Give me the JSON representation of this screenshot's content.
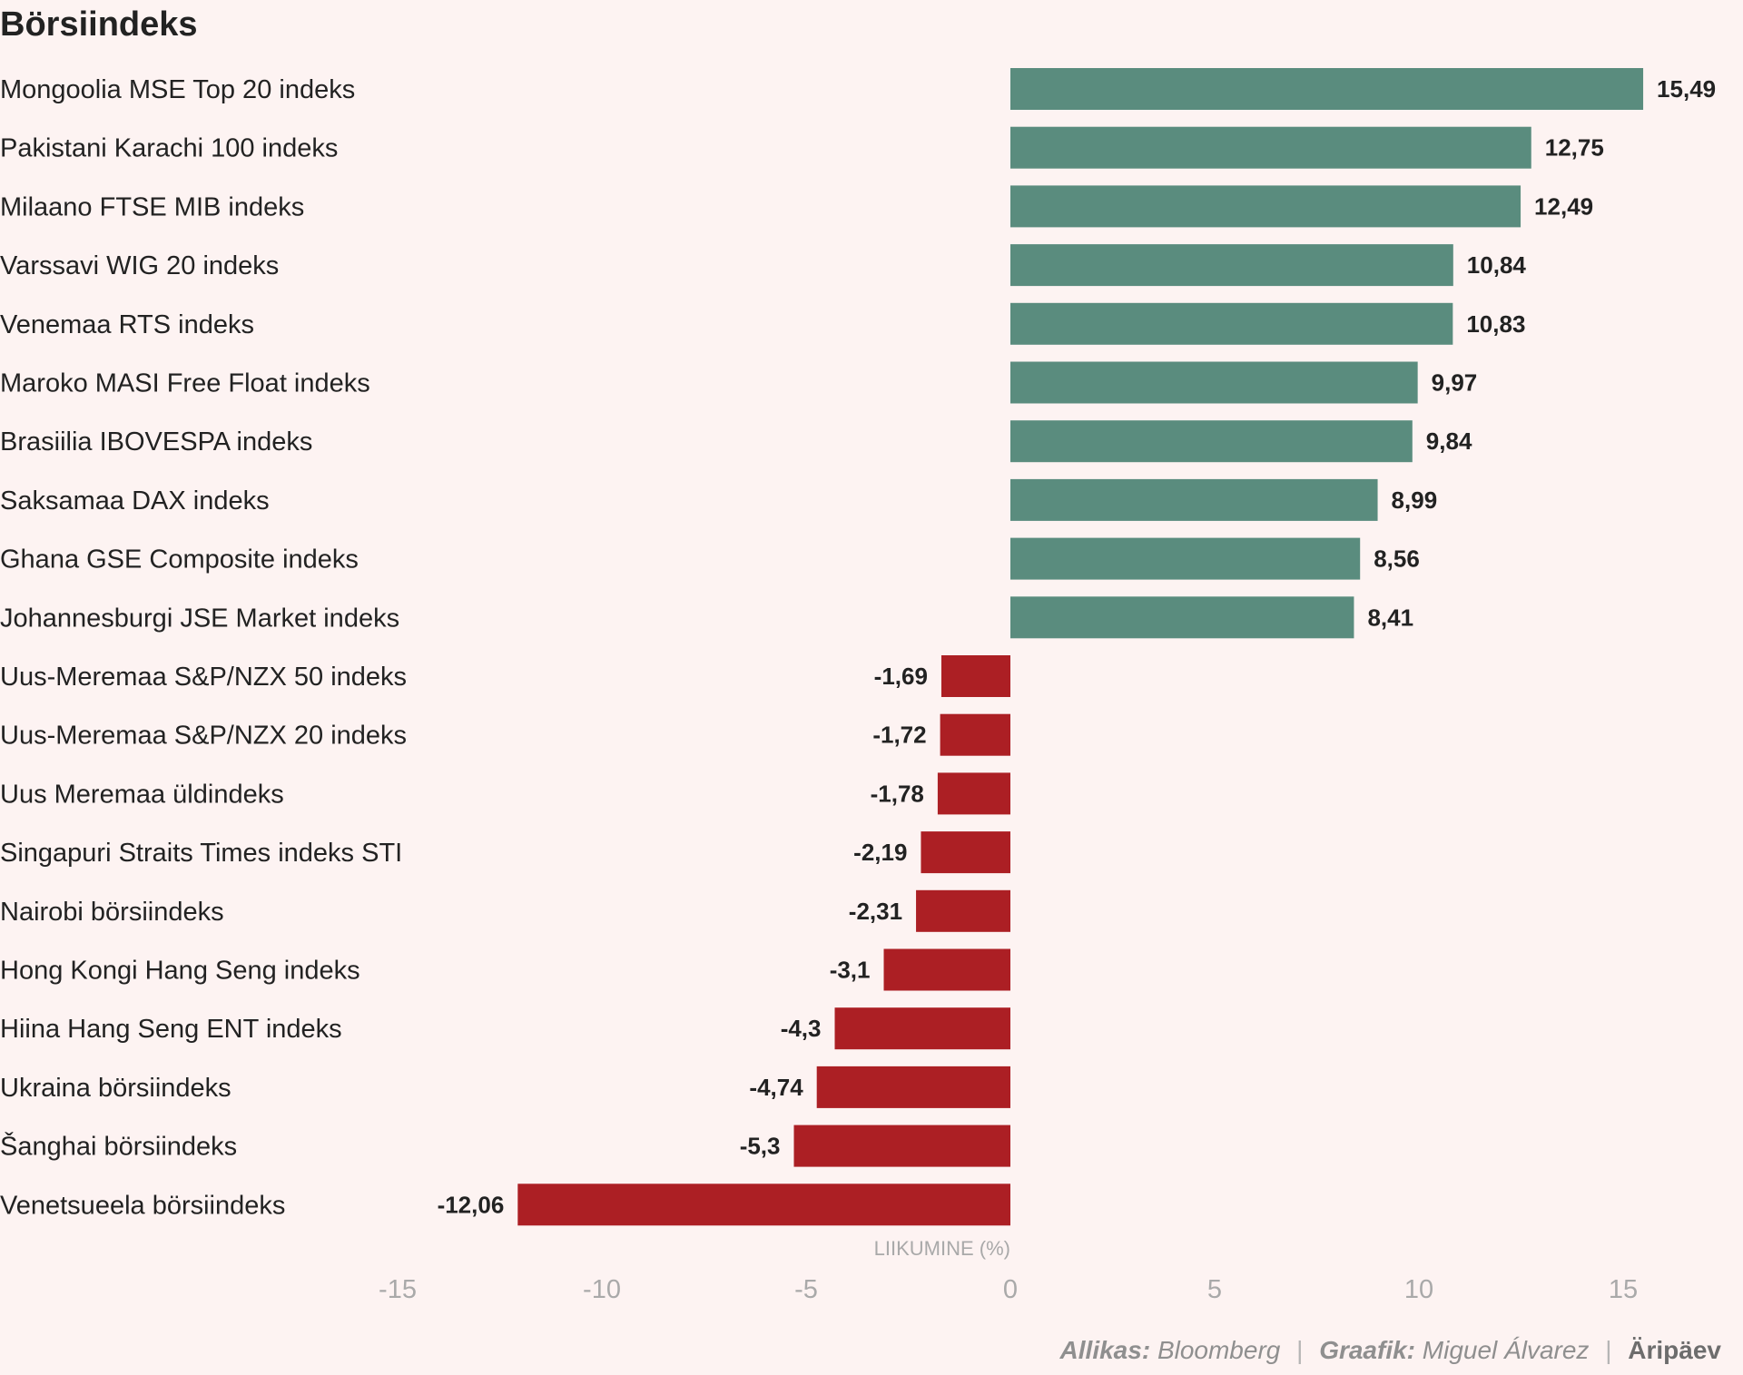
{
  "chart_data": {
    "type": "bar",
    "orientation": "horizontal",
    "title": "Börsiindeks",
    "xlabel": "LIIKUMINE (%)",
    "xlim": [
      -15,
      15
    ],
    "xticks": [
      "-15",
      "-10",
      "-5",
      "0",
      "5",
      "10",
      "15"
    ],
    "grid": false,
    "positive_color": "#5a8c7e",
    "negative_color": "#ac1f24",
    "categories": [
      "Mongoolia MSE Top 20 indeks",
      "Pakistani Karachi 100 indeks",
      "Milaano FTSE MIB indeks",
      "Varssavi WIG 20 indeks",
      "Venemaa RTS indeks",
      "Maroko MASI Free Float indeks",
      "Brasiilia IBOVESPA indeks",
      "Saksamaa DAX indeks",
      "Ghana GSE Composite indeks",
      "Johannesburgi JSE Market indeks",
      "Uus-Meremaa S&P/NZX 50 indeks",
      "Uus-Meremaa S&P/NZX 20 indeks",
      "Uus Meremaa üldindeks",
      "Singapuri Straits Times indeks STI",
      "Nairobi börsiindeks",
      "Hong Kongi Hang Seng indeks",
      "Hiina Hang Seng ENT indeks",
      "Ukraina börsiindeks",
      "Šanghai börsiindeks",
      "Venetsueela börsiindeks"
    ],
    "values": [
      15.49,
      12.75,
      12.49,
      10.84,
      10.83,
      9.97,
      9.84,
      8.99,
      8.56,
      8.41,
      -1.69,
      -1.72,
      -1.78,
      -2.19,
      -2.31,
      -3.1,
      -4.3,
      -4.74,
      -5.3,
      -12.06
    ],
    "value_labels": [
      "15,49",
      "12,75",
      "12,49",
      "10,84",
      "10,83",
      "9,97",
      "9,84",
      "8,99",
      "8,56",
      "8,41",
      "-1,69",
      "-1,72",
      "-1,78",
      "-2,19",
      "-2,31",
      "-3,1",
      "-4,3",
      "-4,74",
      "-5,3",
      "-12,06"
    ]
  },
  "footer": {
    "source_label": "Allikas:",
    "source_value": "Bloomberg",
    "graphic_label": "Graafik:",
    "graphic_value": "Miguel Álvarez",
    "brand": "Äripäev"
  }
}
